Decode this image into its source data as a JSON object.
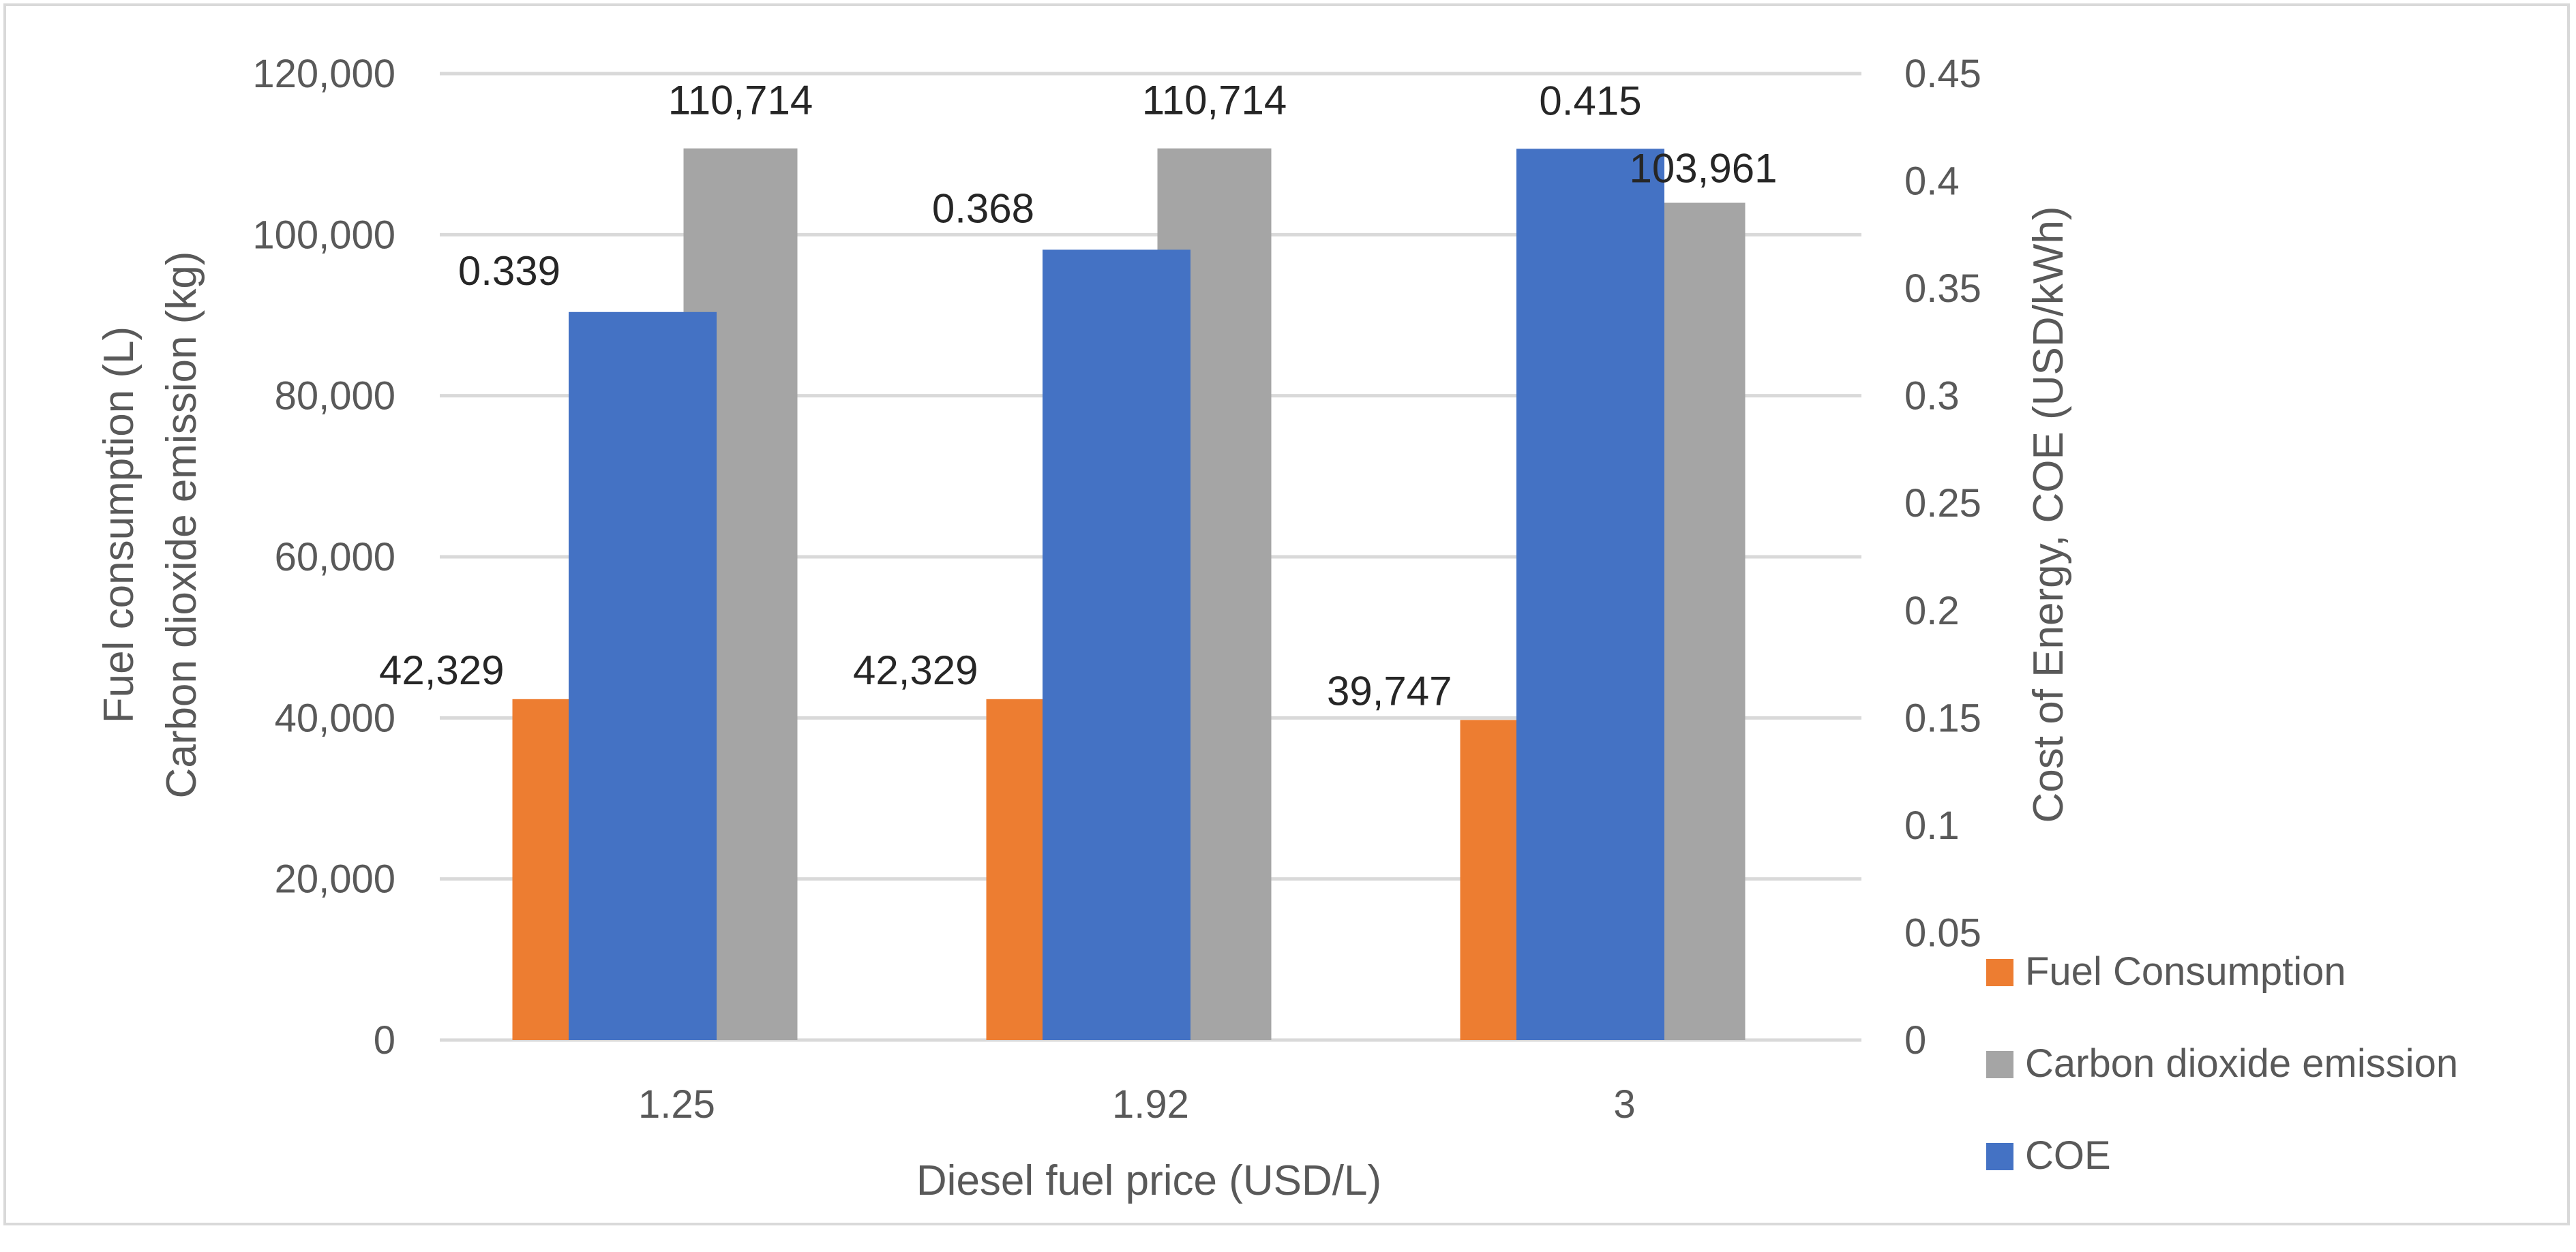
{
  "chart_data": {
    "type": "bar",
    "title": "",
    "xlabel": "Diesel fuel price (USD/L)",
    "ylabel_left": [
      "Fuel consumption (L)",
      "Carbon dioxide emission (kg)"
    ],
    "ylabel_right": "Cost of Energy, COE (USD/kWh)",
    "categories": [
      "1.25",
      "1.92",
      "3"
    ],
    "ylim_left": [
      0,
      120000
    ],
    "ylim_right": [
      0,
      0.45
    ],
    "left_ticks": [
      "0",
      "20,000",
      "40,000",
      "60,000",
      "80,000",
      "100,000",
      "120,000"
    ],
    "right_ticks": [
      "0",
      "0.05",
      "0.1",
      "0.15",
      "0.2",
      "0.25",
      "0.3",
      "0.35",
      "0.4",
      "0.45"
    ],
    "grid": true,
    "legend_position": "right",
    "series": [
      {
        "name": "Fuel Consumption",
        "axis": "left",
        "color": "#ed7d31",
        "values": [
          42329,
          42329,
          39747
        ],
        "labels": [
          "42,329",
          "42,329",
          "39,747"
        ]
      },
      {
        "name": "Carbon dioxide emission",
        "axis": "left",
        "color": "#a5a5a5",
        "values": [
          110714,
          110714,
          103961
        ],
        "labels": [
          "110,714",
          "110,714",
          "103,961"
        ]
      },
      {
        "name": "COE",
        "axis": "right",
        "color": "#4472c4",
        "values": [
          0.339,
          0.368,
          0.415
        ],
        "labels": [
          "0.339",
          "0.368",
          "0.415"
        ]
      }
    ]
  }
}
